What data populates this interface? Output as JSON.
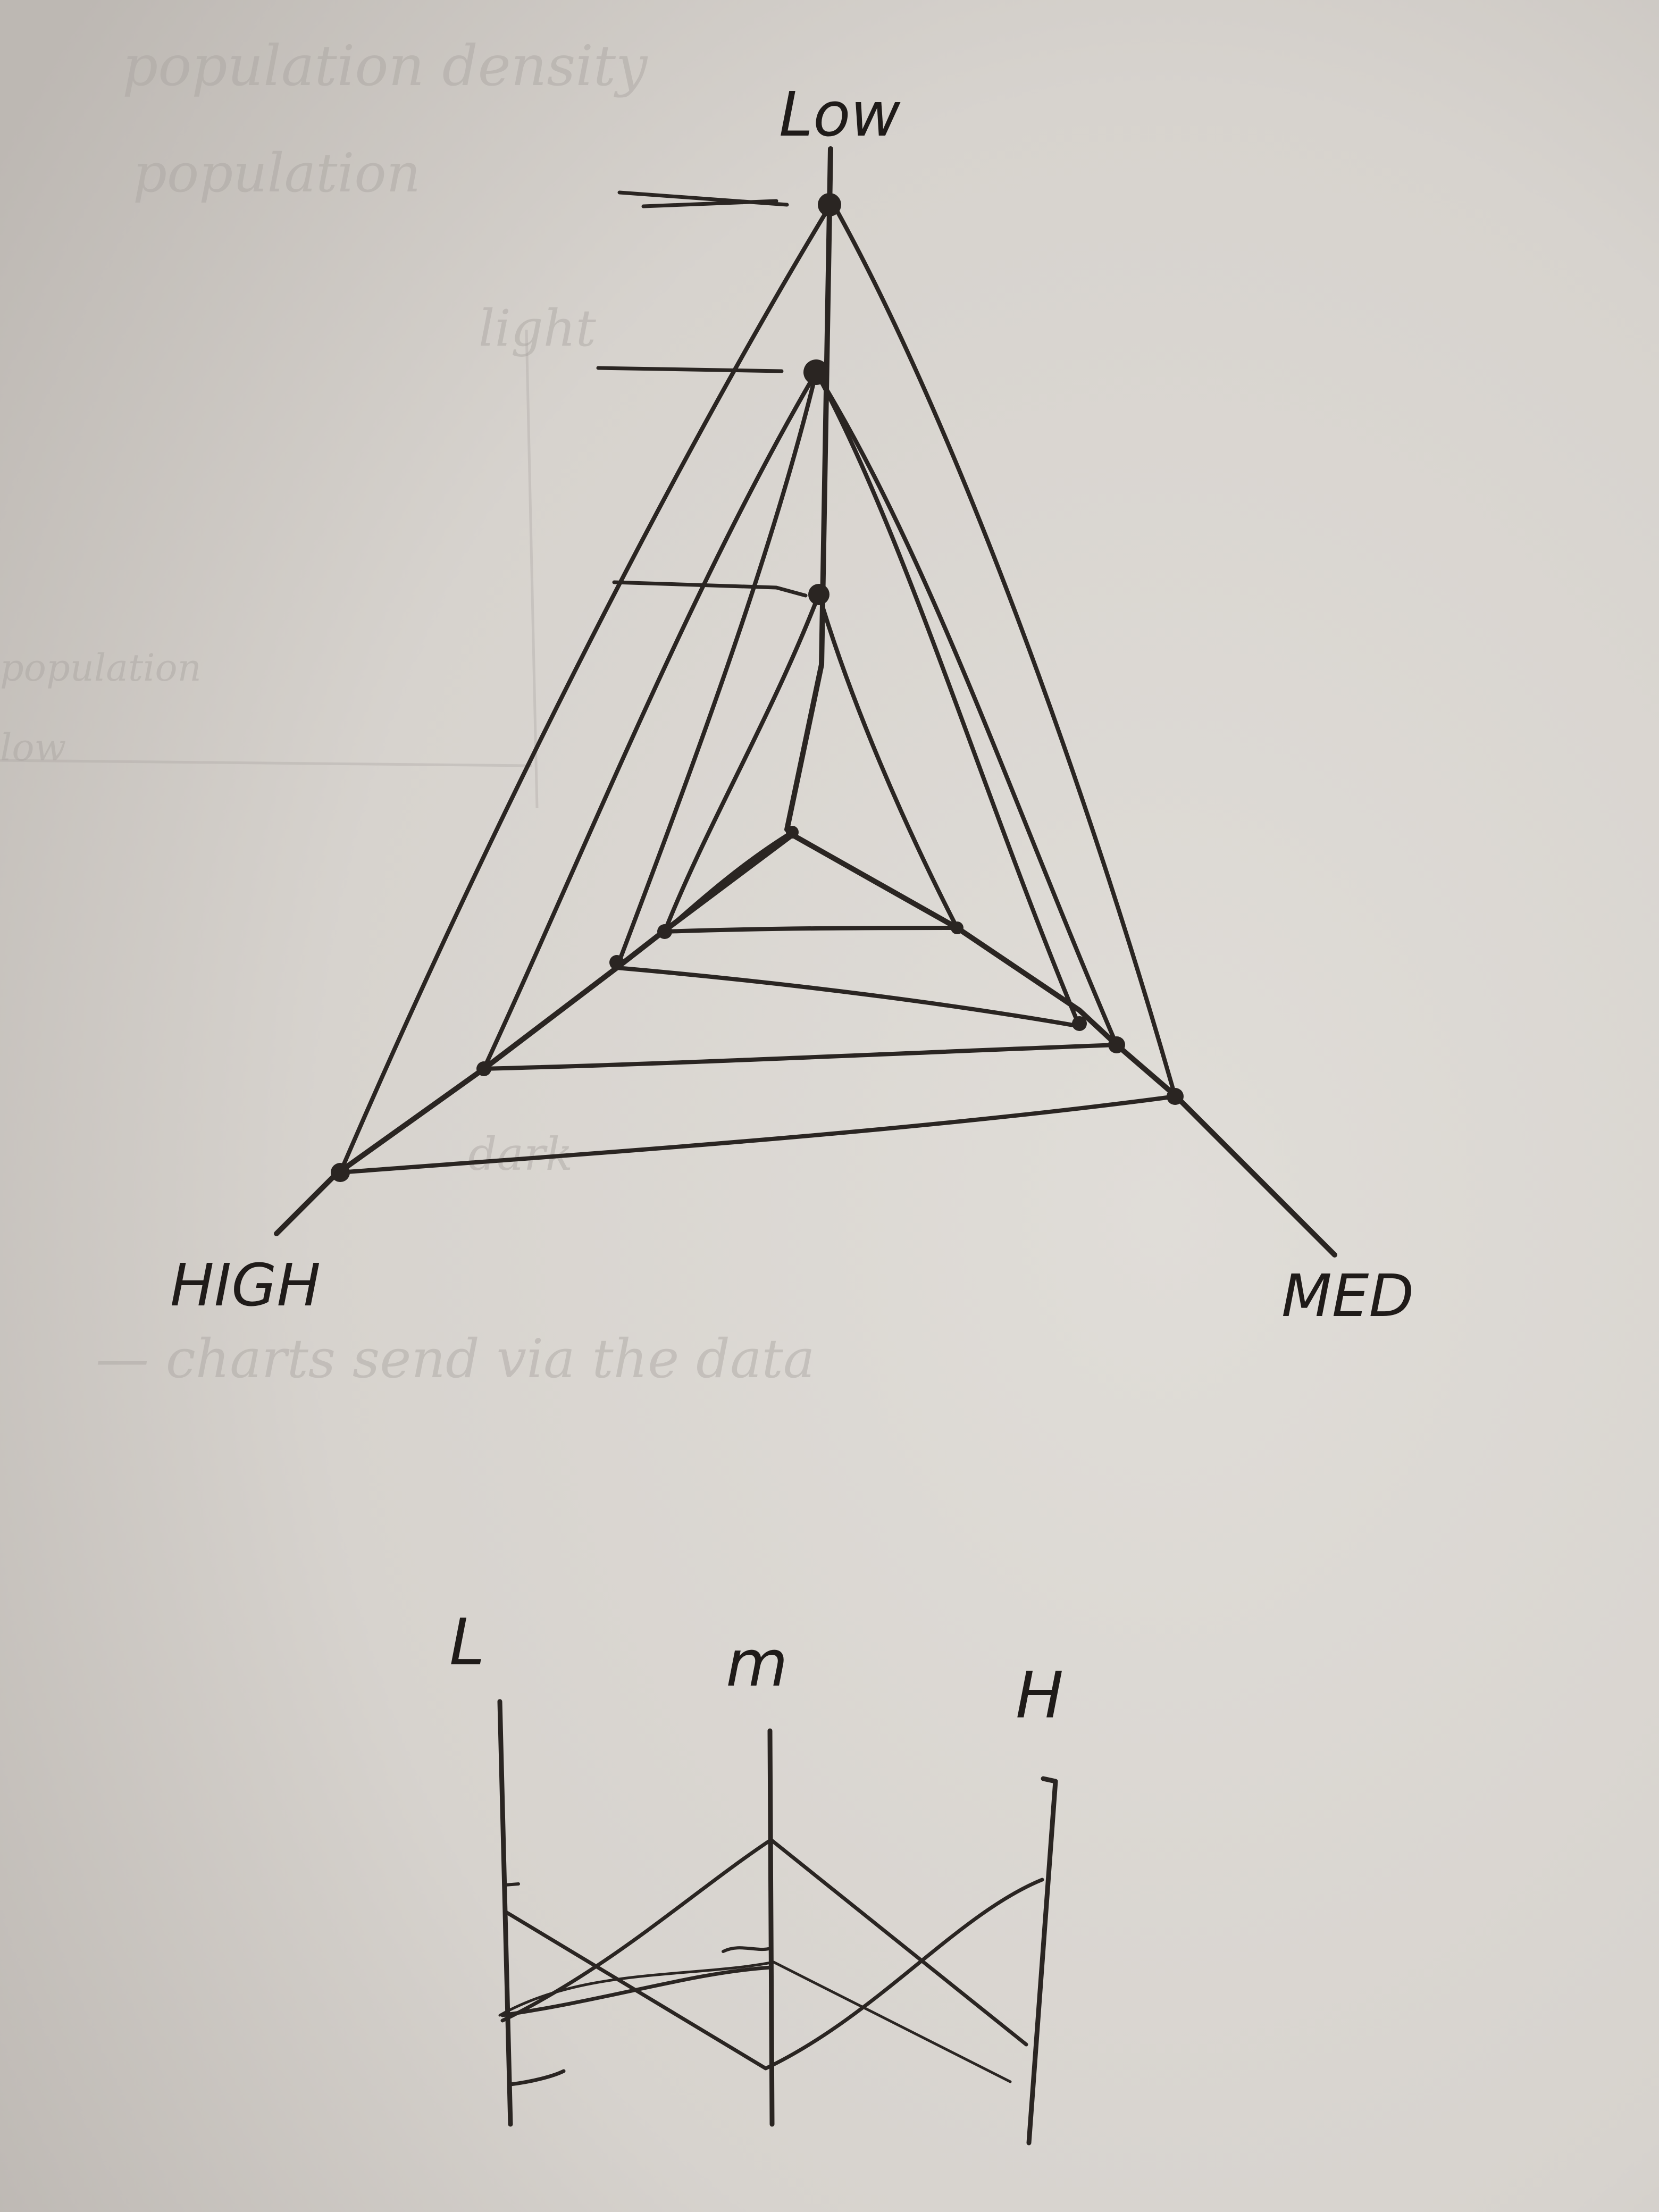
{
  "radar_sketch": {
    "axis_top_label": "Low",
    "axis_left_label": "HIGH",
    "axis_right_label": "MED"
  },
  "parallel_sketch": {
    "axes": [
      "L",
      "m",
      "H"
    ]
  },
  "show_through_text": {
    "line1": "population density",
    "line2": "population",
    "line3": "light",
    "line4": "population",
    "line5": "low",
    "line6": "dark",
    "line7": "— charts send via the data"
  },
  "colors": {
    "paper": "#d8d4cf",
    "ink": "#2a2522",
    "faint_text": "#a9a4a0"
  }
}
